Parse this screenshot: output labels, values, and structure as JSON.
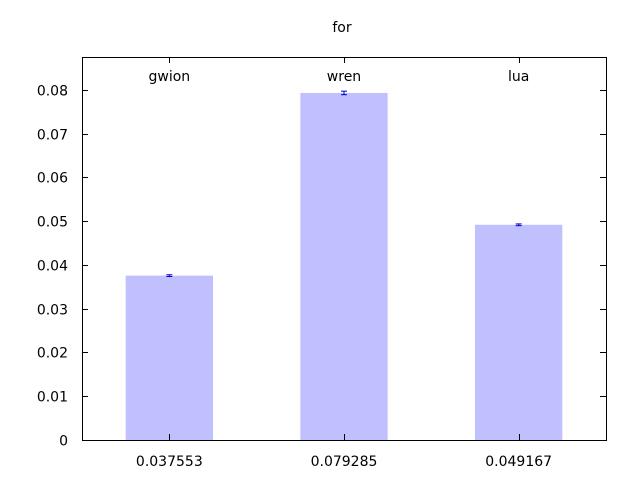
{
  "chart_data": {
    "type": "bar",
    "title": "for",
    "xlabel": "",
    "ylabel": "",
    "categories": [
      "gwion",
      "wren",
      "lua"
    ],
    "values": [
      0.037553,
      0.079285,
      0.049167
    ],
    "value_labels": [
      "0.037553",
      "0.079285",
      "0.049167"
    ],
    "error_bars": [
      0.0002,
      0.0004,
      0.0002
    ],
    "ylim": [
      0,
      0.0875
    ],
    "yticks": [
      0,
      0.01,
      0.02,
      0.03,
      0.04,
      0.05,
      0.06,
      0.07,
      0.08
    ],
    "ytick_labels": [
      "0",
      "0.01",
      "0.02",
      "0.03",
      "0.04",
      "0.05",
      "0.06",
      "0.07",
      "0.08"
    ],
    "grid": false,
    "legend": "none",
    "colors": {
      "bar": "#c0c0ff",
      "error_bar": "#0000cc",
      "axis": "#000000"
    }
  }
}
